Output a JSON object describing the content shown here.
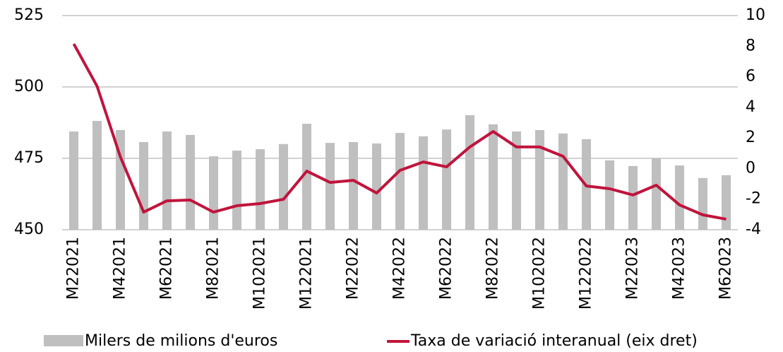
{
  "chart_data": {
    "type": "bar_line",
    "categories": [
      "M22021",
      null,
      "M42021",
      null,
      "M62021",
      null,
      "M82021",
      null,
      "M102021",
      null,
      "M122021",
      null,
      "M22022",
      null,
      "M42022",
      null,
      "M62022",
      null,
      "M82022",
      null,
      "M102022",
      null,
      "M122022",
      null,
      "M22023",
      null,
      "M42023",
      null,
      "M62023"
    ],
    "series": [
      {
        "name": "Milers de milions d'euros",
        "type": "bar",
        "color": "#bfbfbf",
        "values": [
          484.4,
          488.1,
          484.9,
          480.7,
          484.4,
          483.2,
          475.7,
          477.7,
          478.2,
          480.0,
          487.1,
          480.4,
          480.7,
          480.2,
          483.9,
          482.7,
          485.1,
          490.1,
          486.9,
          484.4,
          484.9,
          483.7,
          481.7,
          474.3,
          472.3,
          475.0,
          472.5,
          468.1,
          469.1
        ]
      },
      {
        "name": "Taxa de variació interanual (eix dret)",
        "type": "line",
        "axis": "y2",
        "color": "#c0143c",
        "values": [
          8.15,
          5.38,
          0.76,
          -2.85,
          -2.11,
          -2.06,
          -2.85,
          -2.43,
          -2.29,
          -2.01,
          -0.17,
          -0.91,
          -0.77,
          -1.6,
          -0.12,
          0.43,
          0.11,
          1.41,
          2.42,
          1.41,
          1.41,
          0.8,
          -1.14,
          -1.32,
          -1.73,
          -1.09,
          -2.38,
          -3.03,
          -3.31
        ]
      }
    ],
    "ylim": [
      450,
      525
    ],
    "yticks": [
      450,
      475,
      500,
      525
    ],
    "y2lim": [
      -4,
      10
    ],
    "y2ticks": [
      -4,
      -2,
      0,
      2,
      4,
      6,
      8,
      10
    ],
    "grid": true,
    "legend": "bottom"
  }
}
